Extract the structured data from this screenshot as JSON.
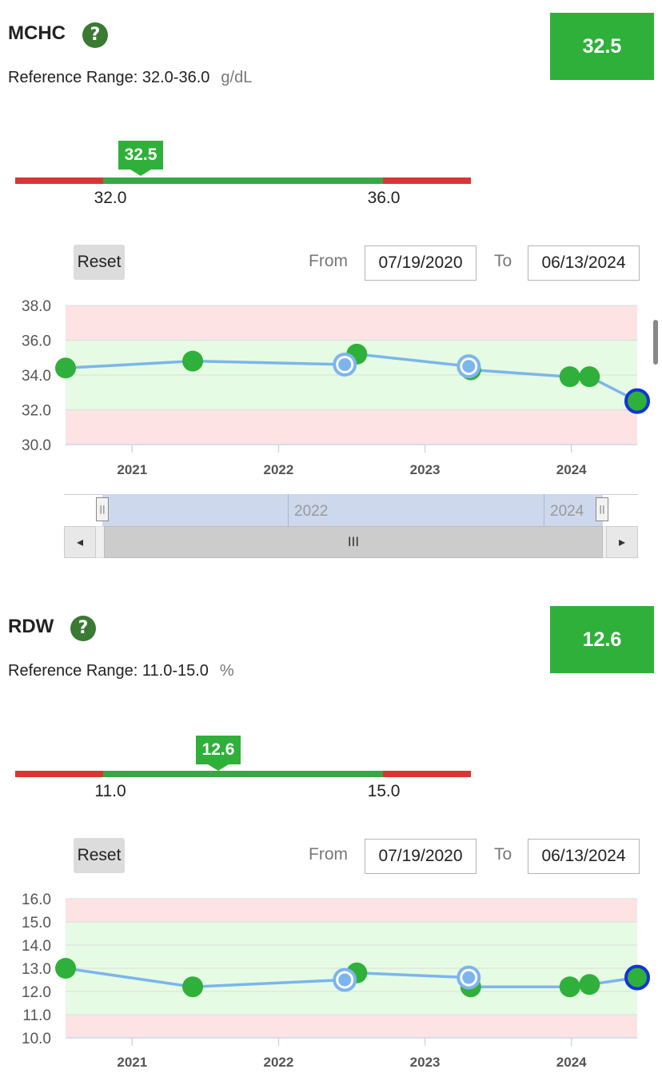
{
  "mchc": {
    "title": "MCHC",
    "help_glyph": "?",
    "value": "32.5",
    "reference_label": "Reference Range: 32.0-36.0",
    "unit": "g/dL",
    "range_low": "32.0",
    "range_high": "36.0",
    "marker_value": "32.5",
    "reset_label": "Reset",
    "from_label": "From",
    "from_date": "07/19/2020",
    "to_label": "To",
    "to_date": "06/13/2024",
    "navigator": {
      "year_a": "2022",
      "year_b": "2024",
      "left_arrow": "◂",
      "right_arrow": "▸",
      "grip": "III",
      "handle_glyph": "||"
    }
  },
  "rdw": {
    "title": "RDW",
    "help_glyph": "?",
    "value": "12.6",
    "reference_label": "Reference Range: 11.0-15.0",
    "unit": "%",
    "range_low": "11.0",
    "range_high": "15.0",
    "marker_value": "12.6",
    "reset_label": "Reset",
    "from_label": "From",
    "from_date": "07/19/2020",
    "to_label": "To",
    "to_date": "06/13/2024"
  },
  "colors": {
    "in_range": "#2fb03a",
    "out_of_range": "#d93535",
    "line": "#7cb5ec",
    "normal_band": "#e6fbe3",
    "abnormal_band": "#fde3e3",
    "latest_ring": "#1334d6"
  },
  "chart_data": [
    {
      "type": "line",
      "title": "",
      "x_ticks": [
        "2021",
        "2022",
        "2023",
        "2024"
      ],
      "ylim": [
        30.0,
        38.0
      ],
      "y_ticks": [
        "30.0",
        "32.0",
        "34.0",
        "36.0",
        "38.0"
      ],
      "normal_range": [
        32.0,
        36.0
      ],
      "grid": true,
      "points": [
        {
          "x": "2020-07-19",
          "y": 34.4,
          "style": "dot"
        },
        {
          "x": "2021-06-01",
          "y": 34.8,
          "style": "dot"
        },
        {
          "x": "2022-06-15",
          "y": 34.6,
          "style": "ring"
        },
        {
          "x": "2022-07-15",
          "y": 35.2,
          "style": "dot"
        },
        {
          "x": "2023-04-20",
          "y": 34.5,
          "style": "ring"
        },
        {
          "x": "2023-04-25",
          "y": 34.3,
          "style": "dot"
        },
        {
          "x": "2023-12-28",
          "y": 33.9,
          "style": "dot"
        },
        {
          "x": "2024-02-15",
          "y": 33.9,
          "style": "dot"
        },
        {
          "x": "2024-06-13",
          "y": 32.5,
          "style": "latest"
        }
      ]
    },
    {
      "type": "line",
      "title": "",
      "x_ticks": [
        "2021",
        "2022",
        "2023",
        "2024"
      ],
      "ylim": [
        10.0,
        16.0
      ],
      "y_ticks": [
        "10.0",
        "11.0",
        "12.0",
        "13.0",
        "14.0",
        "15.0",
        "16.0"
      ],
      "normal_range": [
        11.0,
        15.0
      ],
      "grid": true,
      "points": [
        {
          "x": "2020-07-19",
          "y": 13.0,
          "style": "dot"
        },
        {
          "x": "2021-06-01",
          "y": 12.2,
          "style": "dot"
        },
        {
          "x": "2022-06-15",
          "y": 12.5,
          "style": "ring"
        },
        {
          "x": "2022-07-15",
          "y": 12.8,
          "style": "dot"
        },
        {
          "x": "2023-04-20",
          "y": 12.6,
          "style": "ring"
        },
        {
          "x": "2023-04-25",
          "y": 12.2,
          "style": "dot"
        },
        {
          "x": "2023-12-28",
          "y": 12.2,
          "style": "dot"
        },
        {
          "x": "2024-02-15",
          "y": 12.3,
          "style": "dot"
        },
        {
          "x": "2024-06-13",
          "y": 12.6,
          "style": "latest"
        }
      ]
    }
  ]
}
